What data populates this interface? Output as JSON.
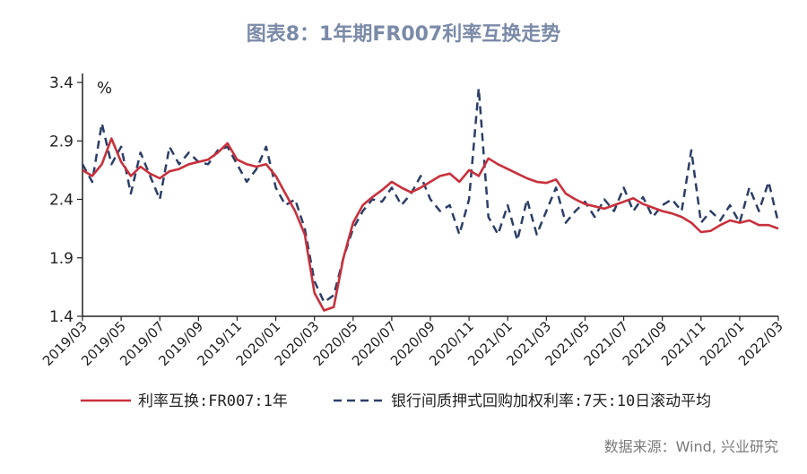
{
  "title": "图表8：1年期FR007利率互换走势",
  "source": "数据来源：Wind, 兴业研究",
  "colors": {
    "series1": "#c8303c",
    "series2": "#2c3e66"
  },
  "chart_data": {
    "type": "line",
    "unit": "%",
    "ylim": [
      1.4,
      3.4
    ],
    "yticks": [
      "3.4",
      "2.9",
      "2.4",
      "1.9",
      "1.4"
    ],
    "xticks": [
      "2019/03",
      "2019/05",
      "2019/07",
      "2019/09",
      "2019/11",
      "2020/01",
      "2020/03",
      "2020/05",
      "2020/07",
      "2020/09",
      "2020/11",
      "2021/01",
      "2021/03",
      "2021/05",
      "2021/07",
      "2021/09",
      "2021/11",
      "2022/01",
      "2022/03"
    ],
    "legend": {
      "placement": "bottom"
    },
    "series": [
      {
        "name": "利率互换:FR007:1年",
        "style": "solid",
        "x": [
          0,
          0.5,
          1,
          1.5,
          2,
          2.5,
          3,
          3.5,
          4,
          4.5,
          5,
          5.5,
          6,
          6.5,
          7,
          7.5,
          8,
          8.5,
          9,
          9.5,
          10,
          10.5,
          11,
          11.5,
          12,
          12.5,
          13,
          13.5,
          14,
          14.5,
          15,
          15.5,
          16,
          16.5,
          17,
          17.5,
          18,
          18.5,
          19,
          19.5,
          20,
          20.5,
          21,
          21.5,
          22,
          22.5,
          23,
          23.5,
          24,
          24.5,
          25,
          25.5,
          26,
          26.5,
          27,
          27.5,
          28,
          28.5,
          29,
          29.5,
          30,
          30.5,
          31,
          31.5,
          32,
          32.5,
          33,
          33.5,
          34,
          34.5,
          35,
          35.5,
          36
        ],
        "values": [
          2.65,
          2.6,
          2.7,
          2.92,
          2.72,
          2.6,
          2.68,
          2.62,
          2.58,
          2.64,
          2.66,
          2.7,
          2.72,
          2.74,
          2.8,
          2.88,
          2.74,
          2.7,
          2.68,
          2.7,
          2.6,
          2.45,
          2.3,
          2.1,
          1.6,
          1.45,
          1.48,
          1.9,
          2.2,
          2.35,
          2.42,
          2.48,
          2.55,
          2.5,
          2.46,
          2.5,
          2.55,
          2.6,
          2.62,
          2.55,
          2.65,
          2.6,
          2.75,
          2.7,
          2.66,
          2.62,
          2.58,
          2.55,
          2.54,
          2.57,
          2.45,
          2.4,
          2.36,
          2.34,
          2.32,
          2.35,
          2.38,
          2.41,
          2.36,
          2.33,
          2.3,
          2.28,
          2.25,
          2.2,
          2.12,
          2.13,
          2.18,
          2.22,
          2.2,
          2.22,
          2.18,
          2.18,
          2.15
        ]
      },
      {
        "name": "银行间质押式回购加权利率:7天:10日滚动平均",
        "style": "dashed",
        "x": [
          0,
          0.5,
          1,
          1.5,
          2,
          2.5,
          3,
          3.5,
          4,
          4.5,
          5,
          5.5,
          6,
          6.5,
          7,
          7.5,
          8,
          8.5,
          9,
          9.5,
          10,
          10.5,
          11,
          11.5,
          12,
          12.5,
          13,
          13.5,
          14,
          14.5,
          15,
          15.5,
          16,
          16.5,
          17,
          17.5,
          18,
          18.5,
          19,
          19.5,
          20,
          20.5,
          21,
          21.5,
          22,
          22.5,
          23,
          23.5,
          24,
          24.5,
          25,
          25.5,
          26,
          26.5,
          27,
          27.5,
          28,
          28.5,
          29,
          29.5,
          30,
          30.5,
          31,
          31.5,
          32,
          32.5,
          33,
          33.5,
          34,
          34.5,
          35,
          35.5,
          36
        ],
        "values": [
          2.7,
          2.55,
          3.05,
          2.7,
          2.85,
          2.45,
          2.8,
          2.6,
          2.4,
          2.85,
          2.7,
          2.8,
          2.72,
          2.7,
          2.82,
          2.85,
          2.7,
          2.55,
          2.66,
          2.85,
          2.5,
          2.35,
          2.4,
          2.15,
          1.7,
          1.52,
          1.58,
          1.9,
          2.15,
          2.3,
          2.4,
          2.38,
          2.5,
          2.35,
          2.45,
          2.6,
          2.4,
          2.3,
          2.35,
          2.1,
          2.4,
          3.35,
          2.25,
          2.1,
          2.35,
          2.05,
          2.4,
          2.1,
          2.3,
          2.5,
          2.2,
          2.3,
          2.38,
          2.25,
          2.4,
          2.3,
          2.5,
          2.3,
          2.42,
          2.25,
          2.35,
          2.4,
          2.3,
          2.82,
          2.2,
          2.3,
          2.22,
          2.35,
          2.2,
          2.5,
          2.3,
          2.55,
          2.2
        ]
      }
    ]
  }
}
